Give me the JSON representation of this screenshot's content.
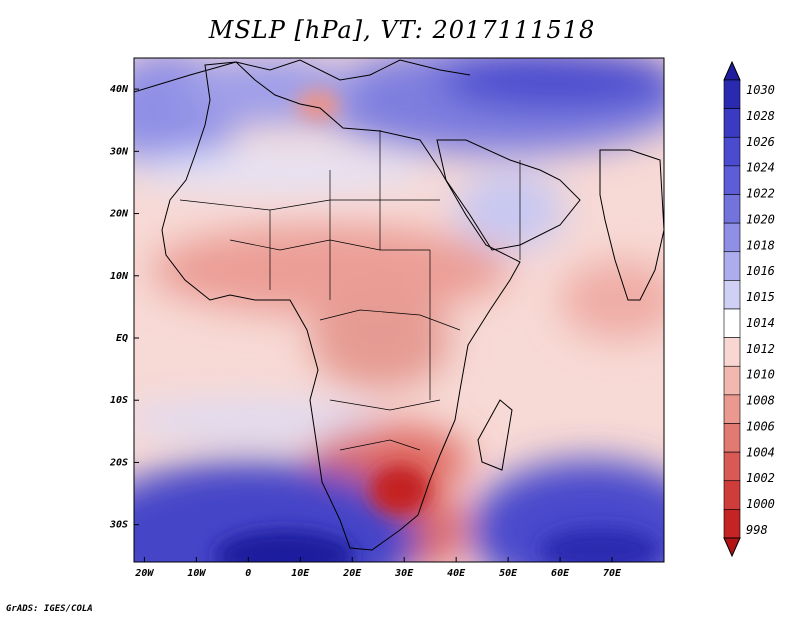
{
  "title": "MSLP [hPa], VT: 2017111518",
  "footer": "GrADS: IGES/COLA",
  "chart_data": {
    "type": "heatmap",
    "title": "MSLP [hPa], VT: 2017111518",
    "variable": "Mean sea level pressure",
    "units": "hPa",
    "valid_time": "2017111518",
    "lon_range": [
      -22,
      80
    ],
    "lat_range": [
      -36,
      45
    ],
    "x_ticks": [
      {
        "value": -20,
        "label": "20W"
      },
      {
        "value": -10,
        "label": "10W"
      },
      {
        "value": 0,
        "label": "0"
      },
      {
        "value": 10,
        "label": "10E"
      },
      {
        "value": 20,
        "label": "20E"
      },
      {
        "value": 30,
        "label": "30E"
      },
      {
        "value": 40,
        "label": "40E"
      },
      {
        "value": 50,
        "label": "50E"
      },
      {
        "value": 60,
        "label": "60E"
      },
      {
        "value": 70,
        "label": "70E"
      }
    ],
    "y_ticks": [
      {
        "value": 40,
        "label": "40N"
      },
      {
        "value": 30,
        "label": "30N"
      },
      {
        "value": 20,
        "label": "20N"
      },
      {
        "value": 10,
        "label": "10N"
      },
      {
        "value": 0,
        "label": "EQ"
      },
      {
        "value": -10,
        "label": "10S"
      },
      {
        "value": -20,
        "label": "20S"
      },
      {
        "value": -30,
        "label": "30S"
      }
    ],
    "colorbar": {
      "levels": [
        "1030",
        "1028",
        "1026",
        "1024",
        "1022",
        "1020",
        "1018",
        "1016",
        "1015",
        "1014",
        "1012",
        "1010",
        "1008",
        "1006",
        "1004",
        "1002",
        "1000",
        "998"
      ],
      "colors": [
        "#1e1e9e",
        "#2a2ab0",
        "#3a3ac2",
        "#4b4bcf",
        "#5d5dd8",
        "#7373de",
        "#8f8fe6",
        "#adaded",
        "#d0d0f4",
        "#ffffff",
        "#f8d6d2",
        "#f2b8b0",
        "#eb9990",
        "#e27a72",
        "#d95a55",
        "#cf3d3a",
        "#c42424",
        "#b01414"
      ]
    },
    "pressure_features": [
      {
        "name": "low over southern Africa",
        "lon": 29,
        "lat": -24,
        "value": 1003
      },
      {
        "name": "low over central Sahara / Sahel",
        "lon": 17,
        "lat": 12,
        "value": 1008
      },
      {
        "name": "high over South Atlantic",
        "lon": 5,
        "lat": -33,
        "value": 1030
      },
      {
        "name": "high over South Indian Ocean",
        "lon": 65,
        "lat": -33,
        "value": 1028
      },
      {
        "name": "high over Middle East / Arabia",
        "lon": 50,
        "lat": 35,
        "value": 1024
      },
      {
        "name": "high over North Atlantic (Madeira)",
        "lon": -20,
        "lat": 38,
        "value": 1022
      },
      {
        "name": "low over Tunisia",
        "lon": 10,
        "lat": 36,
        "value": 1010
      }
    ]
  }
}
